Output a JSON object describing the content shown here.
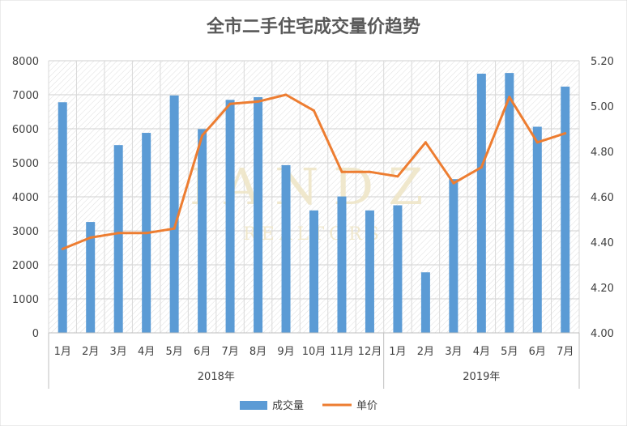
{
  "chart_data": {
    "type": "bar+line",
    "title": "全市二手住宅成交量价趋势",
    "categories": [
      "1月",
      "2月",
      "3月",
      "4月",
      "5月",
      "6月",
      "7月",
      "8月",
      "9月",
      "10月",
      "11月",
      "12月",
      "1月",
      "2月",
      "3月",
      "4月",
      "5月",
      "6月",
      "7月"
    ],
    "year_groups": [
      {
        "label": "2018年",
        "count": 12
      },
      {
        "label": "2019年",
        "count": 7
      }
    ],
    "series": [
      {
        "name": "成交量",
        "type": "bar",
        "axis": "left",
        "color": "#5b9bd5",
        "values": [
          6780,
          3260,
          5520,
          5880,
          6980,
          5990,
          6850,
          6930,
          4930,
          3600,
          4010,
          3600,
          3750,
          1780,
          4520,
          7620,
          7640,
          6060,
          7240
        ]
      },
      {
        "name": "单价",
        "type": "line",
        "axis": "right",
        "color": "#ed7d31",
        "values": [
          4.37,
          4.42,
          4.44,
          4.44,
          4.46,
          4.87,
          5.01,
          5.02,
          5.05,
          4.98,
          4.71,
          4.71,
          4.69,
          4.84,
          4.66,
          4.73,
          5.04,
          4.84,
          4.88
        ]
      }
    ],
    "y_left": {
      "min": 0,
      "max": 8000,
      "step": 1000,
      "ticks": [
        "0",
        "1000",
        "2000",
        "3000",
        "4000",
        "5000",
        "6000",
        "7000",
        "8000"
      ]
    },
    "y_right": {
      "min": 4.0,
      "max": 5.2,
      "step": 0.2,
      "ticks": [
        "4.00",
        "4.20",
        "4.40",
        "4.60",
        "4.80",
        "5.00",
        "5.20"
      ]
    },
    "grid": true,
    "legend_position": "bottom"
  },
  "watermark": {
    "big": "IANDZ",
    "small": "REALTORS"
  }
}
